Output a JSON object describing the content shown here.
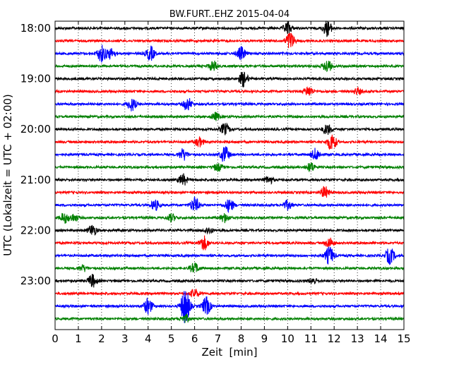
{
  "chart_data": {
    "type": "line",
    "title": "BW.FURT..EHZ 2015-04-04",
    "xlabel": "Zeit  [min]",
    "ylabel": "UTC (Lokalzeit = UTC + 02:00)",
    "xlim": [
      0,
      15
    ],
    "xticks": [
      0,
      1,
      2,
      3,
      4,
      5,
      6,
      7,
      8,
      9,
      10,
      11,
      12,
      13,
      14,
      15
    ],
    "yticks": [
      "18:00",
      "19:00",
      "20:00",
      "21:00",
      "22:00",
      "23:00"
    ],
    "grid": "vertical-dotted",
    "colors": [
      "#000000",
      "#ff0000",
      "#0000ff",
      "#008000"
    ],
    "trace_interval_min": 15,
    "traces": [
      {
        "start": "18:00",
        "color": "#000000",
        "events": [
          [
            10.0,
            0.9
          ],
          [
            11.7,
            1.2
          ]
        ]
      },
      {
        "start": "18:15",
        "color": "#ff0000",
        "events": [
          [
            10.1,
            1.4
          ]
        ]
      },
      {
        "start": "18:30",
        "color": "#0000ff",
        "events": [
          [
            2.0,
            1.3
          ],
          [
            2.4,
            0.8
          ],
          [
            4.1,
            1.1
          ],
          [
            8.0,
            1.0
          ]
        ]
      },
      {
        "start": "18:45",
        "color": "#008000",
        "events": [
          [
            6.8,
            0.8
          ],
          [
            11.7,
            1.0
          ]
        ]
      },
      {
        "start": "19:00",
        "color": "#000000",
        "events": [
          [
            8.1,
            1.2
          ]
        ]
      },
      {
        "start": "19:15",
        "color": "#ff0000",
        "events": [
          [
            10.9,
            0.8
          ],
          [
            13.0,
            0.5
          ]
        ]
      },
      {
        "start": "19:30",
        "color": "#0000ff",
        "events": [
          [
            3.3,
            1.0
          ],
          [
            5.7,
            1.0
          ]
        ]
      },
      {
        "start": "19:45",
        "color": "#008000",
        "events": [
          [
            6.9,
            0.6
          ]
        ]
      },
      {
        "start": "20:00",
        "color": "#000000",
        "events": [
          [
            7.3,
            0.9
          ],
          [
            11.7,
            0.8
          ]
        ]
      },
      {
        "start": "20:15",
        "color": "#ff0000",
        "events": [
          [
            6.2,
            0.7
          ],
          [
            11.9,
            1.4
          ]
        ]
      },
      {
        "start": "20:30",
        "color": "#0000ff",
        "events": [
          [
            5.5,
            0.9
          ],
          [
            7.3,
            1.3
          ],
          [
            11.2,
            0.9
          ]
        ]
      },
      {
        "start": "20:45",
        "color": "#008000",
        "events": [
          [
            7.0,
            0.6
          ],
          [
            11.0,
            0.7
          ]
        ]
      },
      {
        "start": "21:00",
        "color": "#000000",
        "events": [
          [
            5.5,
            0.9
          ],
          [
            9.2,
            0.6
          ]
        ]
      },
      {
        "start": "21:15",
        "color": "#ff0000",
        "events": [
          [
            11.6,
            0.9
          ]
        ]
      },
      {
        "start": "21:30",
        "color": "#0000ff",
        "events": [
          [
            4.3,
            0.8
          ],
          [
            6.0,
            1.2
          ],
          [
            7.5,
            1.0
          ],
          [
            10.0,
            0.7
          ]
        ]
      },
      {
        "start": "21:45",
        "color": "#008000",
        "events": [
          [
            0.4,
            0.8
          ],
          [
            0.8,
            0.6
          ],
          [
            5.0,
            0.6
          ],
          [
            7.3,
            0.7
          ]
        ]
      },
      {
        "start": "22:00",
        "color": "#000000",
        "events": [
          [
            1.6,
            0.9
          ],
          [
            6.6,
            0.5
          ]
        ]
      },
      {
        "start": "22:15",
        "color": "#ff0000",
        "events": [
          [
            6.4,
            1.1
          ],
          [
            11.8,
            0.8
          ]
        ]
      },
      {
        "start": "22:30",
        "color": "#0000ff",
        "events": [
          [
            11.8,
            1.4
          ],
          [
            14.4,
            1.3
          ]
        ]
      },
      {
        "start": "22:45",
        "color": "#008000",
        "events": [
          [
            1.2,
            0.5
          ],
          [
            6.0,
            0.8
          ]
        ]
      },
      {
        "start": "23:00",
        "color": "#000000",
        "events": [
          [
            1.6,
            1.0
          ],
          [
            11.1,
            0.5
          ]
        ]
      },
      {
        "start": "23:15",
        "color": "#ff0000",
        "events": [
          [
            6.0,
            0.7
          ]
        ]
      },
      {
        "start": "23:30",
        "color": "#0000ff",
        "events": [
          [
            4.0,
            1.2
          ],
          [
            5.6,
            3.0
          ],
          [
            6.5,
            1.4
          ]
        ]
      },
      {
        "start": "23:45",
        "color": "#008000",
        "events": [
          [
            5.6,
            0.6
          ]
        ]
      }
    ]
  }
}
